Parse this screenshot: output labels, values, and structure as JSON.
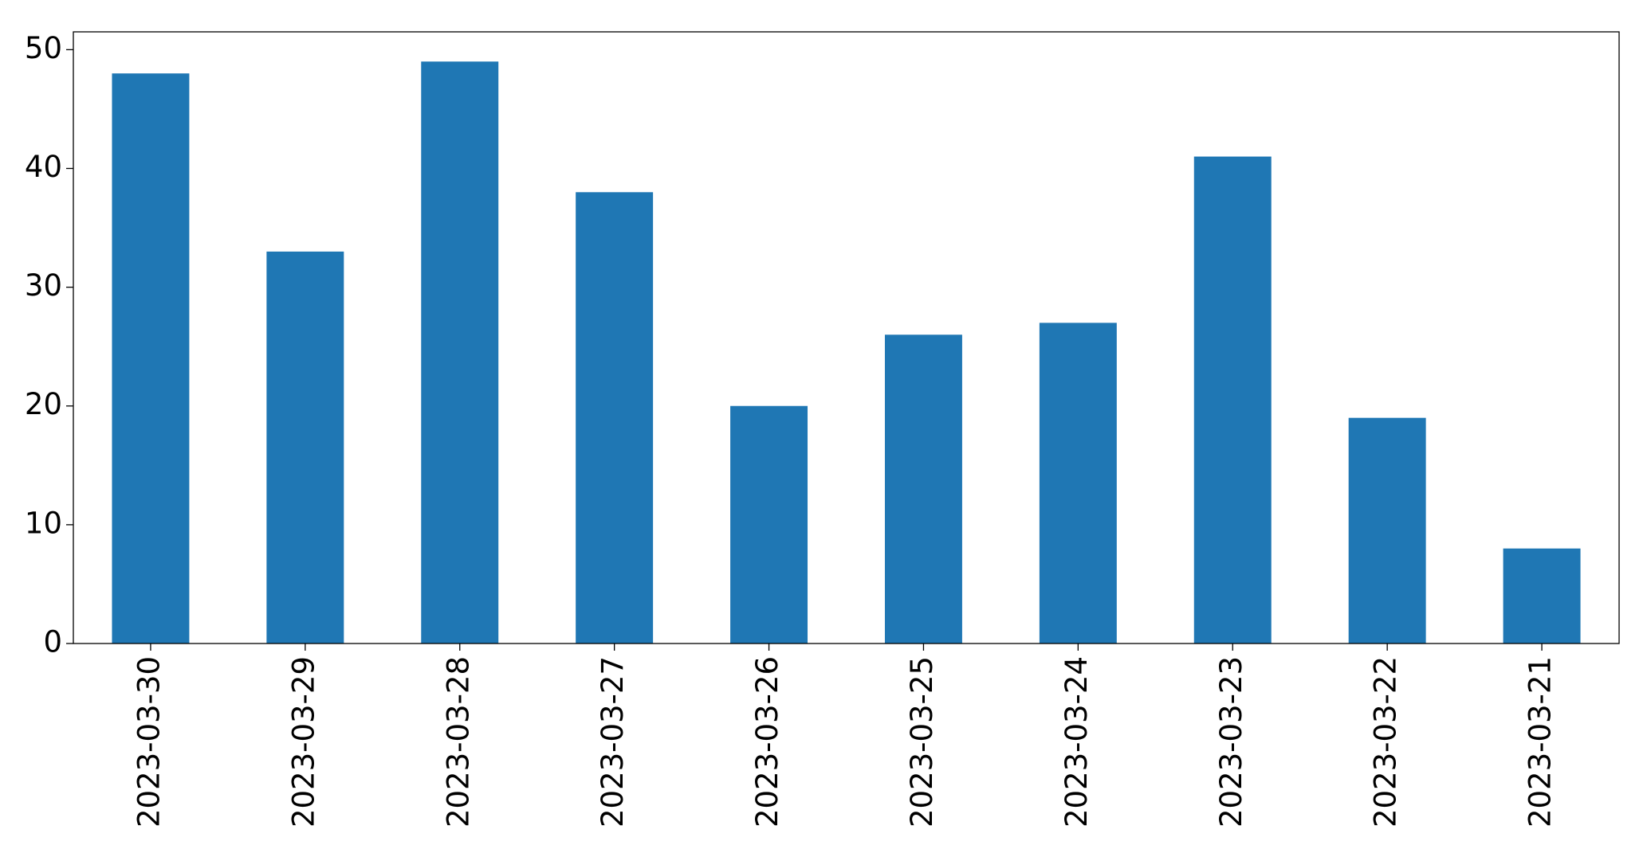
{
  "chart_data": {
    "type": "bar",
    "categories": [
      "2023-03-30",
      "2023-03-29",
      "2023-03-28",
      "2023-03-27",
      "2023-03-26",
      "2023-03-25",
      "2023-03-24",
      "2023-03-23",
      "2023-03-22",
      "2023-03-21"
    ],
    "values": [
      48,
      33,
      49,
      38,
      20,
      26,
      27,
      41,
      19,
      8
    ],
    "color": "#1f77b4",
    "ylim": [
      0,
      51.5
    ],
    "yticks": [
      0,
      10,
      20,
      30,
      40,
      50
    ],
    "grid": false
  }
}
